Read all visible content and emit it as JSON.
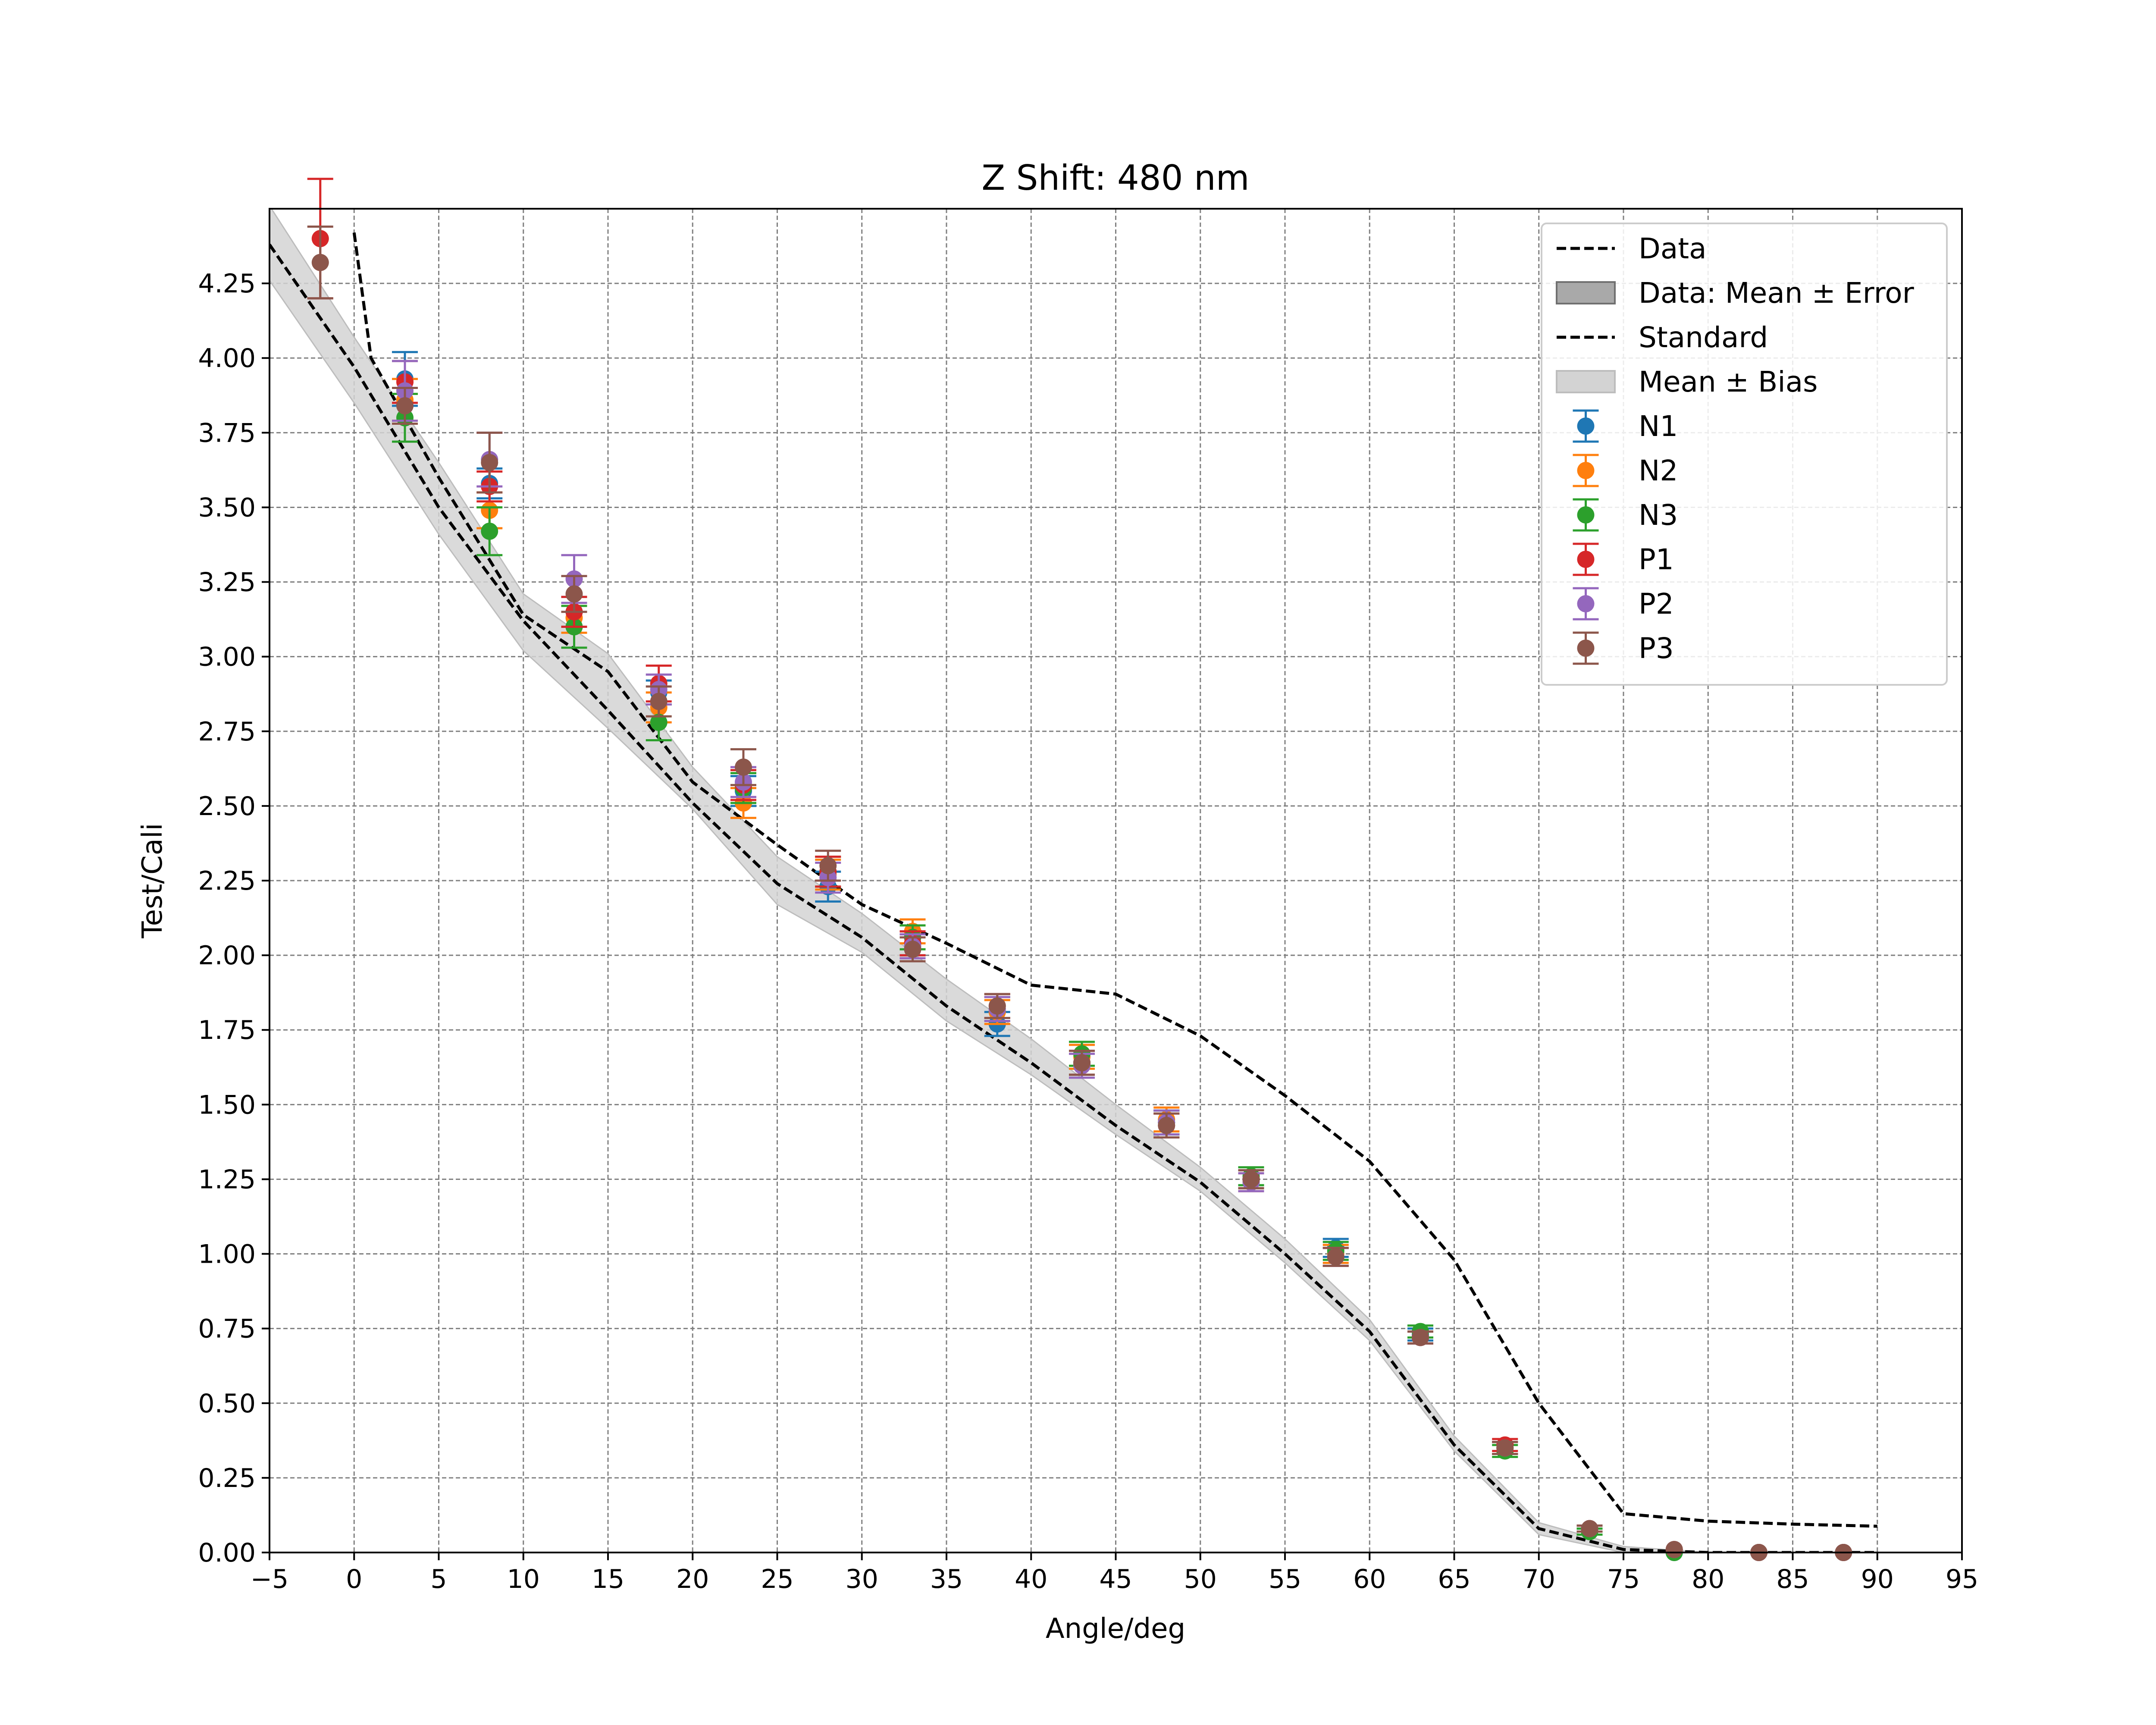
{
  "chart_data": {
    "type": "scatter",
    "title": "Z Shift: 480 nm",
    "xlabel": "Angle/deg",
    "ylabel": "Test/Cali",
    "xlim": [
      -5,
      95
    ],
    "ylim": [
      0,
      4.5
    ],
    "xticks": [
      "−5",
      "0",
      "5",
      "10",
      "15",
      "20",
      "25",
      "30",
      "35",
      "40",
      "45",
      "50",
      "55",
      "60",
      "65",
      "70",
      "75",
      "80",
      "85",
      "90",
      "95"
    ],
    "yticks": [
      "0.00",
      "0.25",
      "0.50",
      "0.75",
      "1.00",
      "1.25",
      "1.50",
      "1.75",
      "2.00",
      "2.25",
      "2.50",
      "2.75",
      "3.00",
      "3.25",
      "3.50",
      "3.75",
      "4.00",
      "4.25"
    ],
    "grid": true,
    "legend_position": "top-right",
    "legend": [
      "Data",
      "Data: Mean ± Error",
      "Standard",
      "Mean ± Bias",
      "N1",
      "N2",
      "N3",
      "P1",
      "P2",
      "P3"
    ],
    "lines": [
      {
        "name": "Data",
        "style": "dashed",
        "color": "#000000",
        "x": [
          0,
          1,
          5,
          10,
          15,
          20,
          25,
          30,
          35,
          40,
          45,
          50,
          55,
          60,
          65,
          70,
          75,
          80,
          85,
          90
        ],
        "y": [
          4.42,
          4.0,
          3.6,
          3.14,
          2.95,
          2.58,
          2.37,
          2.17,
          2.04,
          1.9,
          1.87,
          1.73,
          1.53,
          1.31,
          0.98,
          0.5,
          0.13,
          0.105,
          0.095,
          0.088
        ]
      },
      {
        "name": "Standard",
        "style": "dashed",
        "color": "#000000",
        "x": [
          -5,
          0,
          5,
          10,
          15,
          20,
          25,
          30,
          35,
          40,
          45,
          50,
          55,
          60,
          65,
          70,
          75,
          80,
          85,
          90
        ],
        "y": [
          4.38,
          3.97,
          3.5,
          3.12,
          2.82,
          2.51,
          2.24,
          2.06,
          1.83,
          1.64,
          1.43,
          1.24,
          1.0,
          0.74,
          0.36,
          0.08,
          0.01,
          0.0,
          0.0,
          0.0
        ]
      }
    ],
    "bands": [
      {
        "name": "Mean ± Bias",
        "color": "#d3d3d3",
        "x": [
          -5,
          0,
          5,
          10,
          15,
          20,
          25,
          30,
          35,
          40,
          45,
          50,
          55,
          60,
          65,
          70,
          75,
          80,
          85,
          90
        ],
        "lower": [
          4.26,
          3.85,
          3.41,
          3.02,
          2.76,
          2.49,
          2.17,
          2.01,
          1.78,
          1.6,
          1.4,
          1.21,
          0.97,
          0.71,
          0.34,
          0.06,
          0.0,
          0.0,
          0.0,
          0.0
        ],
        "upper": [
          4.51,
          4.07,
          3.65,
          3.21,
          3.01,
          2.63,
          2.33,
          2.14,
          1.92,
          1.72,
          1.5,
          1.29,
          1.05,
          0.78,
          0.39,
          0.1,
          0.02,
          0.0,
          0.0,
          0.0
        ]
      }
    ],
    "series": [
      {
        "name": "N1",
        "color": "#1f77b4",
        "x": [
          3,
          8,
          13,
          18,
          23,
          28,
          33,
          38,
          43,
          48,
          53,
          58,
          63,
          68,
          73,
          78,
          83,
          88
        ],
        "y": [
          3.93,
          3.58,
          3.15,
          2.88,
          2.55,
          2.23,
          2.04,
          1.77,
          1.64,
          1.44,
          1.25,
          1.02,
          0.73,
          0.35,
          0.07,
          0.0,
          0.0,
          0.0
        ],
        "err": [
          0.09,
          0.05,
          0.05,
          0.04,
          0.05,
          0.05,
          0.04,
          0.04,
          0.04,
          0.04,
          0.03,
          0.03,
          0.02,
          0.02,
          0.01,
          0.0,
          0.0,
          0.0
        ]
      },
      {
        "name": "N2",
        "color": "#ff7f0e",
        "x": [
          3,
          8,
          13,
          18,
          23,
          28,
          33,
          38,
          43,
          48,
          53,
          58,
          63,
          68,
          73,
          78,
          83,
          88
        ],
        "y": [
          3.86,
          3.49,
          3.13,
          2.83,
          2.51,
          2.27,
          2.08,
          1.81,
          1.66,
          1.45,
          1.24,
          1.0,
          0.72,
          0.35,
          0.08,
          0.01,
          0.0,
          0.0
        ],
        "err": [
          0.07,
          0.06,
          0.05,
          0.05,
          0.05,
          0.05,
          0.04,
          0.04,
          0.04,
          0.04,
          0.03,
          0.03,
          0.02,
          0.02,
          0.01,
          0.0,
          0.0,
          0.0
        ]
      },
      {
        "name": "N3",
        "color": "#2ca02c",
        "x": [
          3,
          8,
          13,
          18,
          23,
          28,
          33,
          38,
          43,
          48,
          53,
          58,
          63,
          68,
          73,
          78,
          83,
          88
        ],
        "y": [
          3.8,
          3.42,
          3.1,
          2.78,
          2.56,
          2.28,
          2.06,
          1.82,
          1.67,
          1.44,
          1.26,
          1.01,
          0.74,
          0.34,
          0.07,
          0.0,
          0.0,
          0.0
        ],
        "err": [
          0.08,
          0.08,
          0.07,
          0.06,
          0.05,
          0.05,
          0.04,
          0.04,
          0.04,
          0.04,
          0.03,
          0.03,
          0.02,
          0.02,
          0.01,
          0.0,
          0.0,
          0.0
        ]
      },
      {
        "name": "P1",
        "color": "#d62728",
        "x": [
          -2,
          3,
          8,
          13,
          18,
          23,
          28,
          33,
          38,
          43,
          48,
          53,
          58,
          63,
          68,
          73,
          78,
          83,
          88
        ],
        "y": [
          4.4,
          3.92,
          3.57,
          3.15,
          2.91,
          2.57,
          2.28,
          2.04,
          1.83,
          1.64,
          1.43,
          1.25,
          0.99,
          0.72,
          0.36,
          0.08,
          0.01,
          0.0,
          0.0
        ],
        "err": [
          0.2,
          0.07,
          0.05,
          0.05,
          0.06,
          0.05,
          0.05,
          0.04,
          0.04,
          0.04,
          0.04,
          0.03,
          0.03,
          0.02,
          0.02,
          0.01,
          0.0,
          0.0,
          0.0
        ]
      },
      {
        "name": "P2",
        "color": "#9467bd",
        "x": [
          3,
          8,
          13,
          18,
          23,
          28,
          33,
          38,
          43,
          48,
          53,
          58,
          63,
          68,
          73,
          78,
          83,
          88
        ],
        "y": [
          3.89,
          3.66,
          3.26,
          2.89,
          2.58,
          2.26,
          2.03,
          1.82,
          1.63,
          1.44,
          1.24,
          0.99,
          0.72,
          0.35,
          0.08,
          0.01,
          0.0,
          0.0
        ],
        "err": [
          0.1,
          0.09,
          0.08,
          0.05,
          0.05,
          0.05,
          0.04,
          0.04,
          0.04,
          0.04,
          0.03,
          0.03,
          0.02,
          0.02,
          0.01,
          0.0,
          0.0,
          0.0
        ]
      },
      {
        "name": "P3",
        "color": "#8c564b",
        "x": [
          -2,
          3,
          8,
          13,
          18,
          23,
          28,
          33,
          38,
          43,
          48,
          53,
          58,
          63,
          68,
          73,
          78,
          83,
          88
        ],
        "y": [
          4.32,
          3.84,
          3.65,
          3.21,
          2.85,
          2.63,
          2.3,
          2.02,
          1.83,
          1.64,
          1.43,
          1.25,
          0.99,
          0.72,
          0.35,
          0.08,
          0.01,
          0.0,
          0.0
        ],
        "err": [
          0.12,
          0.06,
          0.1,
          0.06,
          0.05,
          0.06,
          0.05,
          0.04,
          0.04,
          0.04,
          0.04,
          0.03,
          0.03,
          0.02,
          0.02,
          0.01,
          0.0,
          0.0,
          0.0
        ]
      }
    ]
  }
}
